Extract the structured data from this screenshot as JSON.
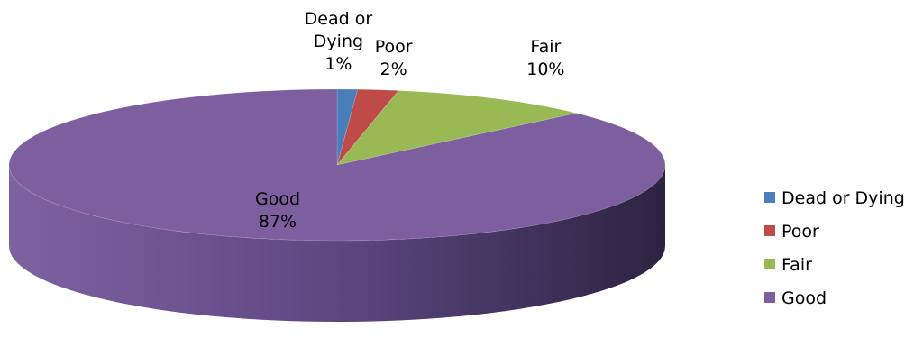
{
  "chart_data": {
    "type": "pie",
    "style": "3d",
    "categories": [
      "Dead or Dying",
      "Poor",
      "Fair",
      "Good"
    ],
    "values": [
      1,
      2,
      10,
      87
    ],
    "value_labels": [
      "1%",
      "2%",
      "10%",
      "87%"
    ],
    "slice_labels": [
      [
        "Dead or",
        "Dying"
      ],
      [
        "Poor"
      ],
      [
        "Fair"
      ],
      [
        "Good"
      ]
    ],
    "colors": [
      "#4a7ebb",
      "#be4b48",
      "#98b954",
      "#7d5fa0"
    ],
    "legend_position": "right"
  }
}
